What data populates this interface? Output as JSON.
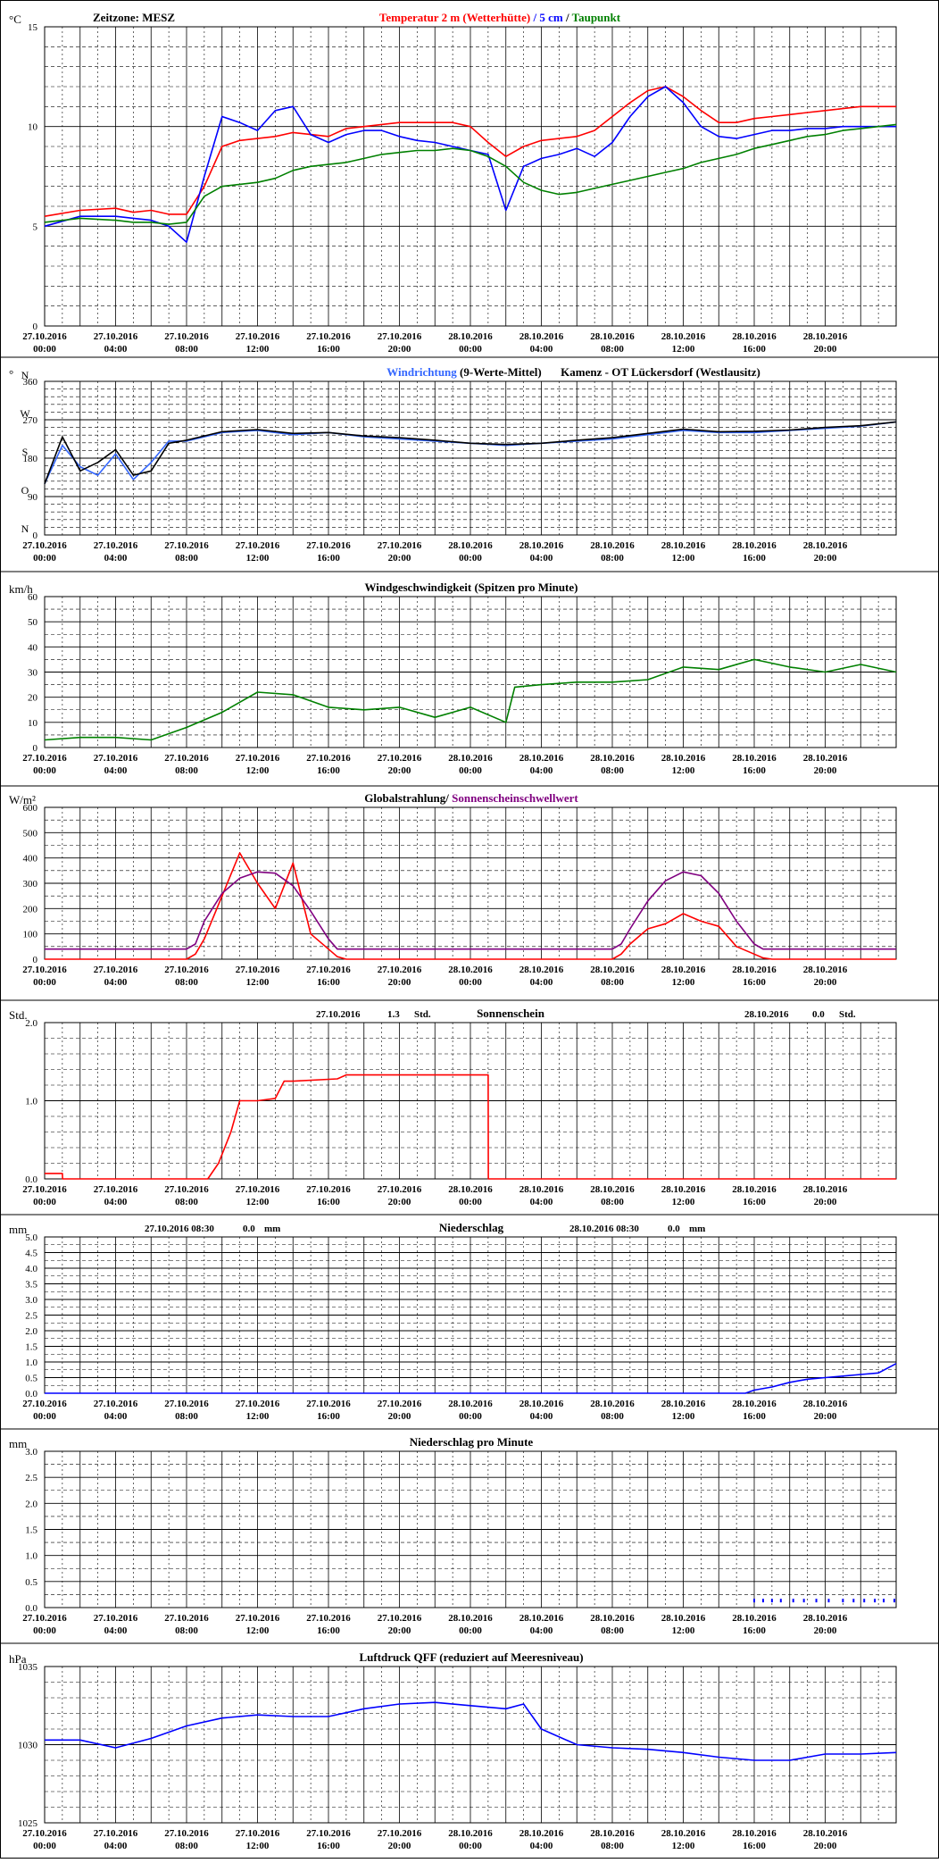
{
  "page": {
    "bg": "#ffffff"
  },
  "x_ticks": [
    {
      "date": "27.10.2016",
      "time": "00:00"
    },
    {
      "date": "27.10.2016",
      "time": "04:00"
    },
    {
      "date": "27.10.2016",
      "time": "08:00"
    },
    {
      "date": "27.10.2016",
      "time": "12:00"
    },
    {
      "date": "27.10.2016",
      "time": "16:00"
    },
    {
      "date": "27.10.2016",
      "time": "20:00"
    },
    {
      "date": "28.10.2016",
      "time": "00:00"
    },
    {
      "date": "28.10.2016",
      "time": "04:00"
    },
    {
      "date": "28.10.2016",
      "time": "08:00"
    },
    {
      "date": "28.10.2016",
      "time": "12:00"
    },
    {
      "date": "28.10.2016",
      "time": "16:00"
    },
    {
      "date": "28.10.2016",
      "time": "20:00"
    }
  ],
  "chart_data": [
    {
      "id": "temperature",
      "type": "line",
      "unit": "°C",
      "ylim": [
        0,
        15
      ],
      "y_ticks": [
        "0",
        "5",
        "10",
        "15"
      ],
      "header_left": "Zeitzone: MESZ",
      "title_parts": [
        {
          "text": "Temperatur 2 m (Wetterhütte)",
          "color": "#ff0000"
        },
        {
          "text": " / ",
          "color": "#0000ff"
        },
        {
          "text": "5 cm",
          "color": "#0000ff"
        },
        {
          "text": " / ",
          "color": "#000000"
        },
        {
          "text": "Taupunkt",
          "color": "#008000"
        }
      ],
      "x_hours": [
        0,
        2,
        4,
        5,
        6,
        7,
        8,
        9,
        10,
        11,
        12,
        13,
        14,
        15,
        16,
        17,
        18,
        19,
        20,
        21,
        22,
        23,
        24,
        25,
        26,
        27,
        28,
        29,
        30,
        31,
        32,
        33,
        34,
        35,
        36,
        37,
        38,
        39,
        40,
        41,
        42,
        43,
        44,
        45,
        46,
        47,
        48
      ],
      "series": [
        {
          "color": "#ff0000",
          "values": [
            5.5,
            5.8,
            5.9,
            5.7,
            5.8,
            5.6,
            5.6,
            7.0,
            9.0,
            9.3,
            9.4,
            9.5,
            9.7,
            9.6,
            9.5,
            9.9,
            10.0,
            10.1,
            10.2,
            10.2,
            10.2,
            10.2,
            10.0,
            9.2,
            8.5,
            9.0,
            9.3,
            9.4,
            9.5,
            9.8,
            10.5,
            11.2,
            11.8,
            12.0,
            11.5,
            10.8,
            10.2,
            10.2,
            10.4,
            10.5,
            10.6,
            10.7,
            10.8,
            10.9,
            11.0,
            11.0,
            11.0
          ]
        },
        {
          "color": "#0000ff",
          "values": [
            5.0,
            5.5,
            5.5,
            5.4,
            5.3,
            5.0,
            4.2,
            7.5,
            10.5,
            10.2,
            9.8,
            10.8,
            11.0,
            9.6,
            9.2,
            9.6,
            9.8,
            9.8,
            9.5,
            9.3,
            9.2,
            9.0,
            8.8,
            8.6,
            5.8,
            8.0,
            8.4,
            8.6,
            8.9,
            8.5,
            9.2,
            10.5,
            11.5,
            12.0,
            11.2,
            10.0,
            9.5,
            9.4,
            9.6,
            9.8,
            9.8,
            9.9,
            9.9,
            10.0,
            10.0,
            10.0,
            10.0
          ]
        },
        {
          "color": "#008000",
          "values": [
            5.2,
            5.4,
            5.3,
            5.2,
            5.2,
            5.1,
            5.2,
            6.5,
            7.0,
            7.1,
            7.2,
            7.4,
            7.8,
            8.0,
            8.1,
            8.2,
            8.4,
            8.6,
            8.7,
            8.8,
            8.8,
            8.9,
            8.8,
            8.5,
            8.0,
            7.2,
            6.8,
            6.6,
            6.7,
            6.9,
            7.1,
            7.3,
            7.5,
            7.7,
            7.9,
            8.2,
            8.4,
            8.6,
            8.9,
            9.1,
            9.3,
            9.5,
            9.6,
            9.8,
            9.9,
            10.0,
            10.1
          ]
        }
      ]
    },
    {
      "id": "wind-direction",
      "type": "line",
      "unit": "°",
      "ylim": [
        0,
        360
      ],
      "y_ticks": [
        "0",
        "90",
        "180",
        "270",
        "360"
      ],
      "compass": [
        "N",
        "O",
        "S",
        "W",
        "N"
      ],
      "title_parts": [
        {
          "text": "Windrichtung",
          "color": "#3366ff"
        },
        {
          "text": " (9-Werte-Mittel)",
          "color": "#000000"
        },
        {
          "text": "Kamenz - OT Lückersdorf (Westlausitz)",
          "color": "#000000"
        }
      ],
      "x_hours": [
        0,
        1,
        2,
        3,
        4,
        5,
        6,
        7,
        8,
        10,
        12,
        14,
        16,
        18,
        20,
        22,
        24,
        26,
        28,
        30,
        32,
        34,
        36,
        38,
        40,
        42,
        44,
        46,
        48
      ],
      "series": [
        {
          "color": "#3366ff",
          "values": [
            120,
            210,
            160,
            140,
            190,
            130,
            170,
            220,
            220,
            240,
            245,
            235,
            240,
            230,
            225,
            220,
            215,
            210,
            215,
            220,
            225,
            235,
            245,
            240,
            240,
            245,
            250,
            255,
            265
          ]
        },
        {
          "color": "#000000",
          "values": [
            120,
            230,
            150,
            170,
            200,
            140,
            150,
            215,
            222,
            242,
            247,
            238,
            240,
            232,
            228,
            222,
            215,
            212,
            215,
            222,
            228,
            238,
            248,
            242,
            243,
            246,
            252,
            256,
            265
          ]
        }
      ]
    },
    {
      "id": "wind-speed",
      "type": "line",
      "unit": "km/h",
      "ylim": [
        0,
        60
      ],
      "y_ticks": [
        "0",
        "10",
        "20",
        "30",
        "40",
        "50",
        "60"
      ],
      "title_parts": [
        {
          "text": "Windgeschwindigkeit (Spitzen pro Minute)",
          "color": "#000000"
        }
      ],
      "x_hours": [
        0,
        2,
        4,
        6,
        8,
        10,
        12,
        14,
        16,
        18,
        20,
        22,
        24,
        26,
        26.5,
        28,
        30,
        32,
        34,
        36,
        38,
        40,
        42,
        44,
        46,
        48
      ],
      "series": [
        {
          "color": "#008000",
          "values": [
            3,
            4,
            4,
            3,
            8,
            14,
            22,
            21,
            16,
            15,
            16,
            12,
            16,
            10,
            24,
            25,
            26,
            26,
            27,
            32,
            31,
            35,
            32,
            30,
            33,
            30
          ]
        }
      ]
    },
    {
      "id": "radiation",
      "type": "line",
      "unit": "W/m²",
      "ylim": [
        0,
        600
      ],
      "y_ticks": [
        "0",
        "100",
        "200",
        "300",
        "400",
        "500",
        "600"
      ],
      "title_parts": [
        {
          "text": "Globalstrahlung/ ",
          "color": "#000000"
        },
        {
          "text": "Sonnenscheinschwellwert",
          "color": "#800080"
        }
      ],
      "x_hours": [
        0,
        8.0,
        8.5,
        9,
        10,
        11,
        12,
        13,
        14,
        15,
        16,
        16.5,
        17,
        24,
        32,
        32.5,
        33,
        34,
        35,
        36,
        37,
        38,
        39,
        40,
        40.5,
        41,
        48
      ],
      "series": [
        {
          "color": "#ff0000",
          "values": [
            0,
            0,
            20,
            80,
            250,
            420,
            300,
            200,
            380,
            100,
            40,
            10,
            0,
            0,
            0,
            20,
            60,
            120,
            140,
            180,
            150,
            130,
            50,
            20,
            5,
            0,
            0
          ]
        },
        {
          "color": "#800080",
          "values": [
            40,
            40,
            60,
            150,
            260,
            320,
            345,
            340,
            290,
            190,
            80,
            40,
            40,
            40,
            40,
            60,
            120,
            230,
            310,
            345,
            330,
            260,
            150,
            60,
            40,
            40,
            40
          ]
        }
      ]
    },
    {
      "id": "sunshine",
      "type": "line",
      "unit": "Std.",
      "ylim": [
        0,
        2
      ],
      "y_ticks": [
        "0.0",
        "1.0",
        "2.0"
      ],
      "title_parts": [
        {
          "text": "Sonnenschein",
          "color": "#000000"
        }
      ],
      "summary_left": {
        "date": "27.10.2016",
        "value": "1.3",
        "unit": "Std."
      },
      "summary_right": {
        "date": "28.10.2016",
        "value": "0.0",
        "unit": "Std."
      },
      "x_hours": [
        0,
        1,
        1.01,
        9.2,
        9.8,
        10.5,
        11.0,
        12.0,
        13.0,
        13.5,
        14.0,
        16.5,
        17.0,
        25.0,
        25.01,
        48
      ],
      "series": [
        {
          "color": "#ff0000",
          "values": [
            0.07,
            0.07,
            0.0,
            0.0,
            0.2,
            0.6,
            1.0,
            1.0,
            1.03,
            1.25,
            1.25,
            1.28,
            1.33,
            1.33,
            0.0,
            0.0
          ]
        }
      ]
    },
    {
      "id": "precipitation",
      "type": "line",
      "unit": "mm",
      "ylim": [
        0,
        5
      ],
      "y_ticks": [
        "0.0",
        "0.5",
        "1.0",
        "1.5",
        "2.0",
        "2.5",
        "3.0",
        "3.5",
        "4.0",
        "4.5",
        "5.0"
      ],
      "title_parts": [
        {
          "text": "Niederschlag",
          "color": "#000000"
        }
      ],
      "summary_left": {
        "date": "27.10.2016 08:30",
        "value": "0.0",
        "unit": "mm"
      },
      "summary_right": {
        "date": "28.10.2016 08:30",
        "value": "0.0",
        "unit": "mm"
      },
      "x_hours": [
        0,
        39.5,
        40,
        41,
        42,
        43,
        44,
        45,
        46,
        47,
        48
      ],
      "series": [
        {
          "color": "#0000ff",
          "values": [
            0,
            0,
            0.1,
            0.2,
            0.35,
            0.45,
            0.5,
            0.55,
            0.6,
            0.65,
            0.95
          ]
        }
      ]
    },
    {
      "id": "precip-minute",
      "type": "scatter",
      "unit": "mm",
      "ylim": [
        0,
        3
      ],
      "y_ticks": [
        "0.0",
        "0.5",
        "1.0",
        "1.5",
        "2.0",
        "2.5",
        "3.0"
      ],
      "title_parts": [
        {
          "text": "Niederschlag pro Minute",
          "color": "#000000"
        }
      ],
      "x_hours": [
        40.0,
        40.5,
        41.0,
        41.5,
        42.2,
        42.8,
        43.5,
        44.2,
        45.0,
        45.6,
        46.2,
        46.8,
        47.3,
        47.9
      ],
      "series": [
        {
          "color": "#0000ff",
          "values": [
            0.1,
            0.1,
            0.1,
            0.1,
            0.1,
            0.1,
            0.1,
            0.1,
            0.1,
            0.1,
            0.1,
            0.1,
            0.1,
            0.1
          ]
        }
      ]
    },
    {
      "id": "pressure",
      "type": "line",
      "unit": "hPa",
      "ylim": [
        1025,
        1035
      ],
      "y_ticks": [
        "1025",
        "1030",
        "1035"
      ],
      "title_parts": [
        {
          "text": "Luftdruck QFF (reduziert auf Meeresniveau)",
          "color": "#000000"
        }
      ],
      "x_hours": [
        0,
        2,
        4,
        6,
        8,
        10,
        12,
        14,
        16,
        18,
        20,
        22,
        24,
        26,
        27,
        28,
        30,
        32,
        34,
        36,
        38,
        40,
        42,
        44,
        46,
        48
      ],
      "series": [
        {
          "color": "#0000ff",
          "values": [
            1030.3,
            1030.3,
            1029.8,
            1030.4,
            1031.2,
            1031.7,
            1031.9,
            1031.8,
            1031.8,
            1032.3,
            1032.6,
            1032.7,
            1032.5,
            1032.3,
            1032.6,
            1031.0,
            1030.0,
            1029.8,
            1029.7,
            1029.5,
            1029.2,
            1029.0,
            1029.0,
            1029.4,
            1029.4,
            1029.5
          ]
        }
      ]
    }
  ]
}
